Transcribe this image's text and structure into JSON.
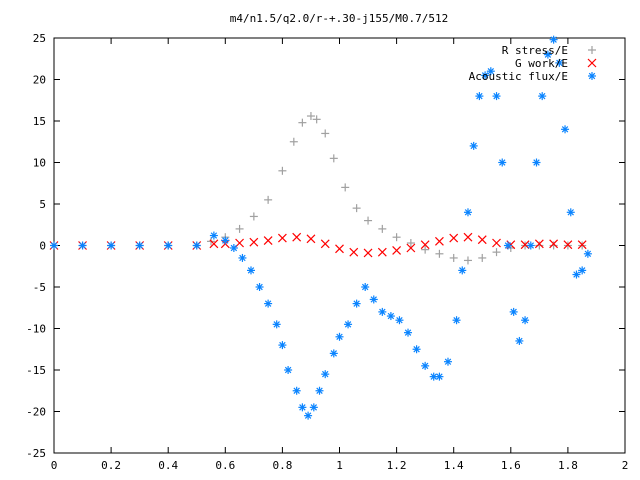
{
  "chart_data": {
    "type": "scatter",
    "title": "m4/n1.5/q2.0/r-+.30-j155/M0.7/512",
    "xlabel": "",
    "ylabel": "",
    "xlim": [
      0,
      2
    ],
    "ylim": [
      -25,
      25
    ],
    "xticks": [
      "0",
      "0.2",
      "0.4",
      "0.6",
      "0.8",
      "1",
      "1.2",
      "1.4",
      "1.6",
      "1.8",
      "2"
    ],
    "yticks": [
      "25",
      "20",
      "15",
      "10",
      "5",
      "0",
      "-5",
      "-10",
      "-15",
      "-20",
      "-25"
    ],
    "grid": false,
    "legend_position": "top-right",
    "series": [
      {
        "name": "R stress/E",
        "marker": "plus",
        "color": "#a0a0a0",
        "x": [
          0.0,
          0.1,
          0.2,
          0.3,
          0.4,
          0.5,
          0.55,
          0.6,
          0.65,
          0.7,
          0.75,
          0.8,
          0.84,
          0.87,
          0.9,
          0.92,
          0.95,
          0.98,
          1.02,
          1.06,
          1.1,
          1.15,
          1.2,
          1.25,
          1.3,
          1.35,
          1.4,
          1.45,
          1.5,
          1.55,
          1.6,
          1.65,
          1.7,
          1.75,
          1.8,
          1.85
        ],
        "y": [
          0,
          0,
          0,
          0,
          0,
          0,
          0.5,
          1.0,
          2.0,
          3.5,
          5.5,
          9.0,
          12.5,
          14.8,
          15.6,
          15.2,
          13.5,
          10.5,
          7.0,
          4.5,
          3.0,
          2.0,
          1.0,
          0.3,
          -0.5,
          -1.0,
          -1.5,
          -1.8,
          -1.5,
          -0.8,
          -0.3,
          0.0,
          0.0,
          0.0,
          0.0,
          0.0
        ]
      },
      {
        "name": "G work/E",
        "marker": "cross",
        "color": "#ff0000",
        "x": [
          0.0,
          0.1,
          0.2,
          0.3,
          0.4,
          0.5,
          0.56,
          0.6,
          0.65,
          0.7,
          0.75,
          0.8,
          0.85,
          0.9,
          0.95,
          1.0,
          1.05,
          1.1,
          1.15,
          1.2,
          1.25,
          1.3,
          1.35,
          1.4,
          1.45,
          1.5,
          1.55,
          1.6,
          1.65,
          1.7,
          1.75,
          1.8,
          1.85
        ],
        "y": [
          0,
          0,
          0,
          0,
          0,
          0,
          0.2,
          0.2,
          0.3,
          0.4,
          0.6,
          0.9,
          1.0,
          0.8,
          0.2,
          -0.4,
          -0.8,
          -0.9,
          -0.8,
          -0.6,
          -0.3,
          0.1,
          0.5,
          0.9,
          1.0,
          0.7,
          0.3,
          0.1,
          0.1,
          0.2,
          0.2,
          0.1,
          0.1
        ]
      },
      {
        "name": "Acoustic flux/E",
        "marker": "star",
        "color": "#0a84ff",
        "x": [
          0.0,
          0.1,
          0.2,
          0.3,
          0.4,
          0.5,
          0.56,
          0.6,
          0.63,
          0.66,
          0.69,
          0.72,
          0.75,
          0.78,
          0.8,
          0.82,
          0.85,
          0.87,
          0.89,
          0.91,
          0.93,
          0.95,
          0.98,
          1.0,
          1.03,
          1.06,
          1.09,
          1.12,
          1.15,
          1.18,
          1.21,
          1.24,
          1.27,
          1.3,
          1.33,
          1.35,
          1.38,
          1.41,
          1.43,
          1.45,
          1.47,
          1.49,
          1.51,
          1.53,
          1.55,
          1.57,
          1.59,
          1.61,
          1.63,
          1.65,
          1.67,
          1.69,
          1.71,
          1.73,
          1.75,
          1.77,
          1.79,
          1.81,
          1.83,
          1.85,
          1.87
        ],
        "y": [
          0,
          0,
          0,
          0,
          0,
          0,
          1.2,
          0.6,
          -0.3,
          -1.5,
          -3.0,
          -5.0,
          -7.0,
          -9.5,
          -12.0,
          -15.0,
          -17.5,
          -19.5,
          -20.5,
          -19.5,
          -17.5,
          -15.5,
          -13.0,
          -11.0,
          -9.5,
          -7.0,
          -5.0,
          -6.5,
          -8.0,
          -8.5,
          -9.0,
          -10.5,
          -12.5,
          -14.5,
          -15.8,
          -15.8,
          -14.0,
          -9.0,
          -3.0,
          4.0,
          12.0,
          18.0,
          20.5,
          21.0,
          18.0,
          10.0,
          0.0,
          -8.0,
          -11.5,
          -9.0,
          0.0,
          10.0,
          18.0,
          23.0,
          24.8,
          22.0,
          14.0,
          4.0,
          -3.5,
          -3.0,
          -1.0
        ]
      }
    ]
  }
}
